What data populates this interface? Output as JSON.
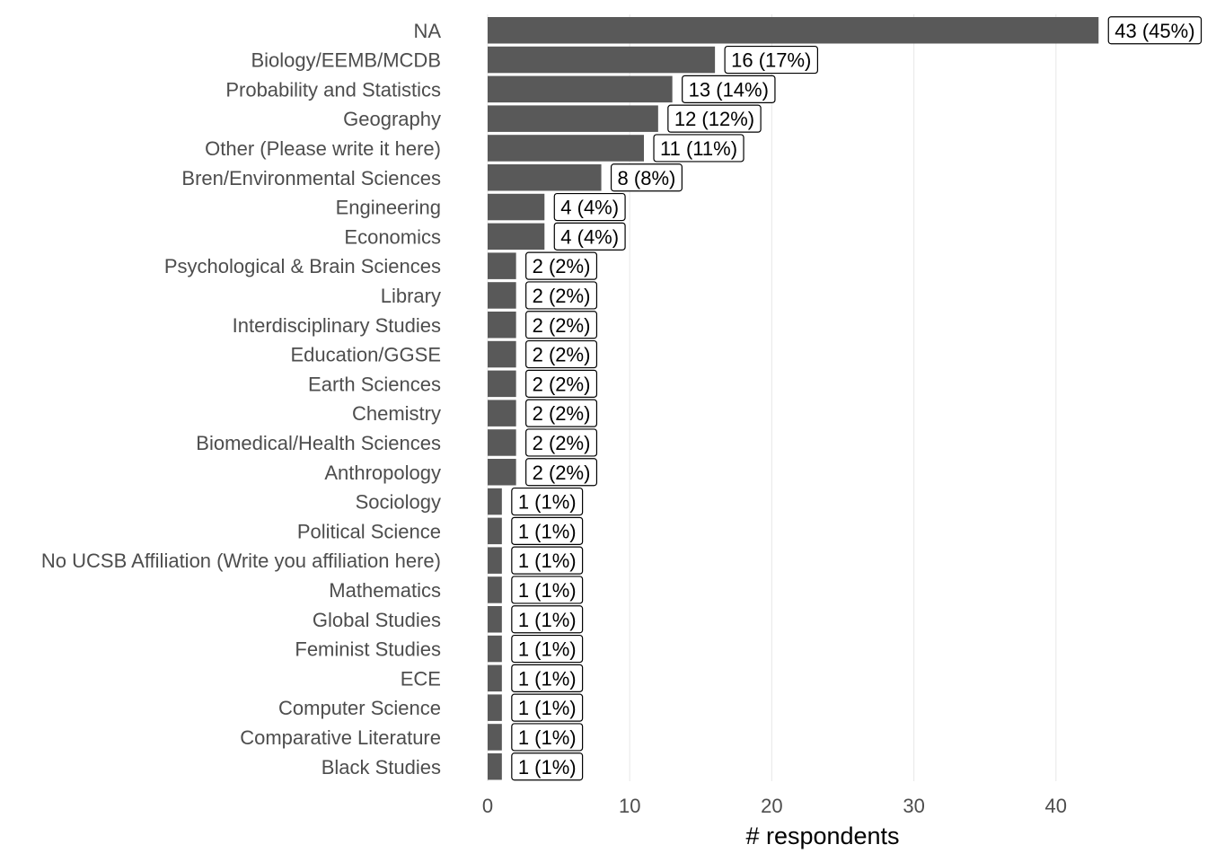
{
  "chart_data": {
    "type": "bar",
    "orientation": "horizontal",
    "categories": [
      "NA",
      "Biology/EEMB/MCDB",
      "Probability and Statistics",
      "Geography",
      "Other (Please write it here)",
      "Bren/Environmental Sciences",
      "Engineering",
      "Economics",
      "Psychological & Brain Sciences",
      "Library",
      "Interdisciplinary Studies",
      "Education/GGSE",
      "Earth Sciences",
      "Chemistry",
      "Biomedical/Health Sciences",
      "Anthropology",
      "Sociology",
      "Political Science",
      "No UCSB Affiliation (Write you affiliation here)",
      "Mathematics",
      "Global Studies",
      "Feminist Studies",
      "ECE",
      "Computer Science",
      "Comparative Literature",
      "Black Studies"
    ],
    "values": [
      43,
      16,
      13,
      12,
      11,
      8,
      4,
      4,
      2,
      2,
      2,
      2,
      2,
      2,
      2,
      2,
      1,
      1,
      1,
      1,
      1,
      1,
      1,
      1,
      1,
      1
    ],
    "data_labels": [
      "43 (45%)",
      "16 (17%)",
      "13 (14%)",
      "12 (12%)",
      "11 (11%)",
      "8 (8%)",
      "4 (4%)",
      "4 (4%)",
      "2 (2%)",
      "2 (2%)",
      "2 (2%)",
      "2 (2%)",
      "2 (2%)",
      "2 (2%)",
      "2 (2%)",
      "2 (2%)",
      "1 (1%)",
      "1 (1%)",
      "1 (1%)",
      "1 (1%)",
      "1 (1%)",
      "1 (1%)",
      "1 (1%)",
      "1 (1%)",
      "1 (1%)",
      "1 (1%)"
    ],
    "title": "",
    "xlabel": "# respondents",
    "ylabel": "",
    "xlim": [
      0,
      49.3
    ],
    "x_ticks": [
      0,
      10,
      20,
      30,
      40
    ],
    "x_tick_labels": [
      "0",
      "10",
      "20",
      "30",
      "40"
    ],
    "grid": "vertical major gridlines",
    "legend": "none",
    "bar_color": "#595959",
    "grid_color": "#ebebeb"
  }
}
